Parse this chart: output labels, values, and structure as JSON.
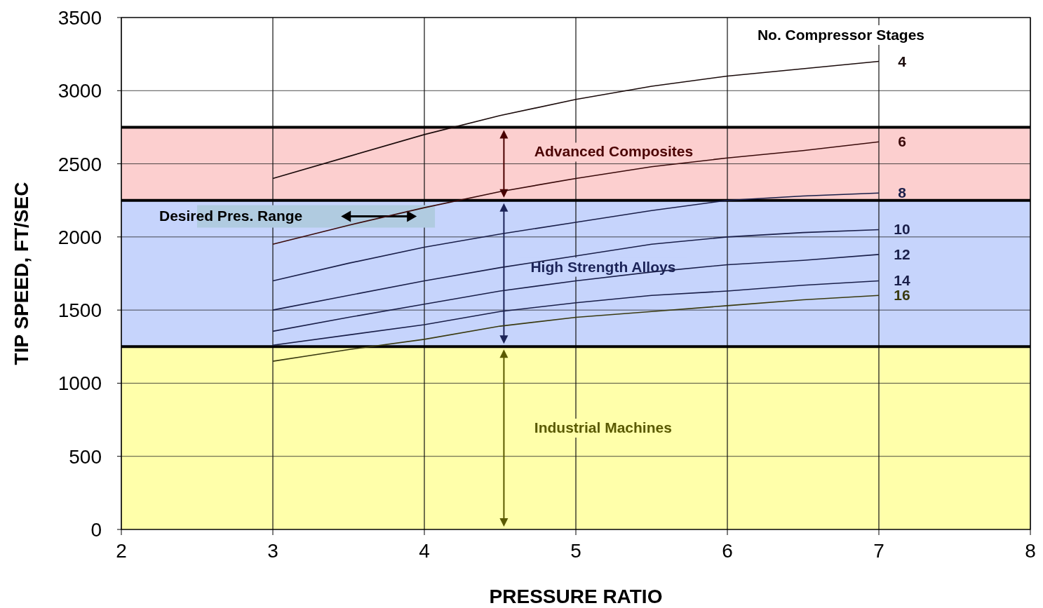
{
  "chart_data": {
    "type": "line",
    "xlabel": "PRESSURE RATIO",
    "ylabel": "TIP SPEED, FT/SEC",
    "legend_title": "No. Compressor Stages",
    "x": [
      3,
      3.5,
      4,
      4.5,
      5,
      5.5,
      6,
      6.5,
      7
    ],
    "xlim": [
      2,
      8
    ],
    "xticks": [
      2,
      3,
      4,
      5,
      6,
      7,
      8
    ],
    "ylim": [
      0,
      3500
    ],
    "yticks": [
      0,
      500,
      1000,
      1500,
      2000,
      2500,
      3000,
      3500
    ],
    "grid": true,
    "marker": "none",
    "line_style": "solid",
    "series": [
      {
        "name": "4",
        "color": "#1a0a0a",
        "values": [
          2400,
          2550,
          2700,
          2830,
          2940,
          3030,
          3100,
          3150,
          3200
        ]
      },
      {
        "name": "6",
        "color": "#3a0a0a",
        "values": [
          1950,
          2080,
          2200,
          2310,
          2400,
          2480,
          2540,
          2590,
          2650
        ]
      },
      {
        "name": "8",
        "color": "#1a1f4a",
        "values": [
          1700,
          1820,
          1930,
          2020,
          2100,
          2180,
          2250,
          2280,
          2300
        ]
      },
      {
        "name": "10",
        "color": "#1a1f4a",
        "values": [
          1500,
          1600,
          1700,
          1790,
          1870,
          1950,
          2000,
          2030,
          2050
        ]
      },
      {
        "name": "12",
        "color": "#1a1f4a",
        "values": [
          1355,
          1450,
          1540,
          1630,
          1700,
          1760,
          1810,
          1840,
          1880
        ]
      },
      {
        "name": "14",
        "color": "#1a1f4a",
        "values": [
          1260,
          1330,
          1400,
          1490,
          1550,
          1600,
          1630,
          1670,
          1700
        ]
      },
      {
        "name": "16",
        "color": "#3a3a10",
        "values": [
          1150,
          1230,
          1300,
          1390,
          1450,
          1490,
          1530,
          1570,
          1600
        ]
      }
    ],
    "bands": [
      {
        "axis": "y",
        "from": 0,
        "to": 1250,
        "label": "Industrial Machines",
        "color": "#ffffaa"
      },
      {
        "axis": "y",
        "from": 1250,
        "to": 2250,
        "label": "High Strength Alloys",
        "color": "#c6d4fc"
      },
      {
        "axis": "y",
        "from": 2250,
        "to": 2750,
        "label": "Advanced Composites",
        "color": "#fccfcf"
      }
    ],
    "annotations": [
      "Desired Pres. Range"
    ]
  }
}
